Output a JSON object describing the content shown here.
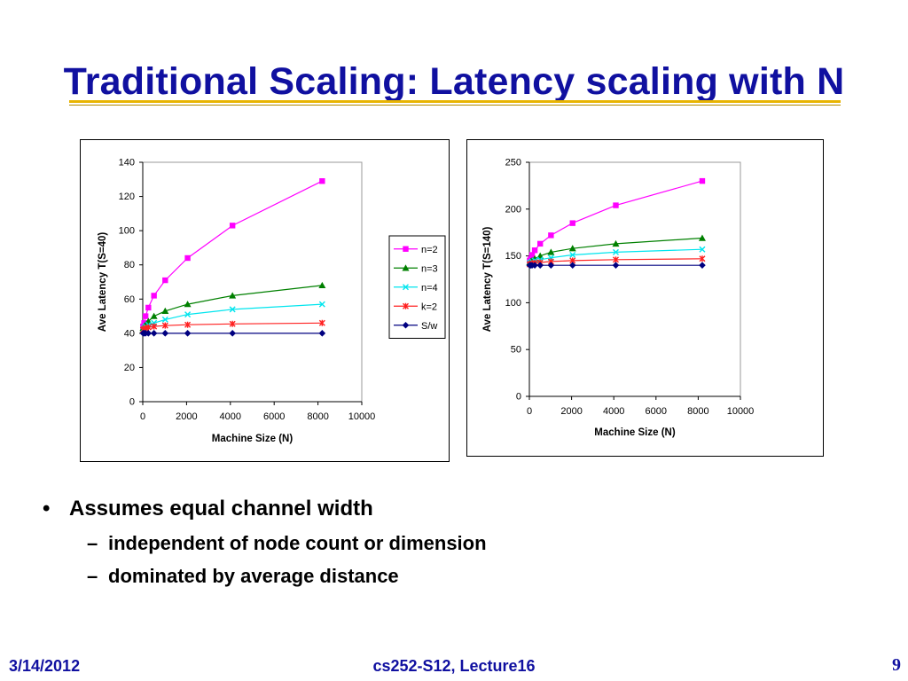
{
  "slide": {
    "title": "Traditional Scaling: Latency scaling with N",
    "bullets": [
      {
        "marker": "•",
        "text": "Assumes equal channel width",
        "subs": [
          {
            "marker": "–",
            "text": "independent of node count or dimension"
          },
          {
            "marker": "–",
            "text": "dominated by average distance"
          }
        ]
      }
    ],
    "footer": {
      "date": "3/14/2012",
      "course": "cs252-S12, Lecture16",
      "page": "9"
    }
  },
  "colors": {
    "title": "#1010a0",
    "rule": "#e8b400",
    "n2": "#ff00ff",
    "n3": "#008000",
    "n4": "#00e5ee",
    "k2": "#ff2020",
    "sw": "#000080"
  },
  "chart_data": [
    {
      "type": "line",
      "title": "",
      "xlabel": "Machine Size (N)",
      "ylabel": "Ave Latency T(S=40)",
      "xlim": [
        0,
        10000
      ],
      "ylim": [
        0,
        140
      ],
      "xticks": [
        0,
        2000,
        4000,
        6000,
        8000,
        10000
      ],
      "yticks": [
        0,
        20,
        40,
        60,
        80,
        100,
        120,
        140
      ],
      "legend": "right",
      "x": [
        16,
        64,
        128,
        256,
        512,
        1024,
        2048,
        4096,
        8192
      ],
      "series": [
        {
          "name": "n=2",
          "marker": "square",
          "color": "#ff00ff",
          "values": [
            44,
            46,
            50,
            55,
            62,
            71,
            84,
            103,
            129
          ]
        },
        {
          "name": "n=3",
          "marker": "triangle",
          "color": "#008000",
          "values": [
            43,
            44,
            45,
            47,
            50,
            53,
            57,
            62,
            68
          ]
        },
        {
          "name": "n=4",
          "marker": "x",
          "color": "#00e5ee",
          "values": [
            42,
            43,
            44,
            45,
            46,
            48,
            51,
            54,
            57
          ]
        },
        {
          "name": "k=2",
          "marker": "star",
          "color": "#ff2020",
          "values": [
            42,
            42.5,
            43,
            43.5,
            44,
            44.5,
            45,
            45.5,
            46
          ]
        },
        {
          "name": "S/w",
          "marker": "diamond",
          "color": "#000080",
          "values": [
            40,
            40,
            40,
            40,
            40,
            40,
            40,
            40,
            40
          ]
        }
      ]
    },
    {
      "type": "line",
      "title": "",
      "xlabel": "Machine Size (N)",
      "ylabel": "Ave Latency T(S=140)",
      "xlim": [
        0,
        10000
      ],
      "ylim": [
        0,
        250
      ],
      "xticks": [
        0,
        2000,
        4000,
        6000,
        8000,
        10000
      ],
      "yticks": [
        0,
        50,
        100,
        150,
        200,
        250
      ],
      "legend": "none",
      "x": [
        16,
        64,
        128,
        256,
        512,
        1024,
        2048,
        4096,
        8192
      ],
      "series": [
        {
          "name": "n=2",
          "marker": "square",
          "color": "#ff00ff",
          "values": [
            145,
            147,
            151,
            156,
            163,
            172,
            185,
            204,
            230
          ]
        },
        {
          "name": "n=3",
          "marker": "triangle",
          "color": "#008000",
          "values": [
            143,
            144,
            145,
            147,
            150,
            154,
            158,
            163,
            169
          ]
        },
        {
          "name": "n=4",
          "marker": "x",
          "color": "#00e5ee",
          "values": [
            142,
            143,
            144,
            145,
            146,
            148,
            151,
            154,
            157
          ]
        },
        {
          "name": "k=2",
          "marker": "star",
          "color": "#ff2020",
          "values": [
            141,
            141.5,
            142,
            142.5,
            143,
            144,
            145,
            146,
            147
          ]
        },
        {
          "name": "S/w",
          "marker": "diamond",
          "color": "#000080",
          "values": [
            140,
            140,
            140,
            140,
            140,
            140,
            140,
            140,
            140
          ]
        }
      ]
    }
  ]
}
